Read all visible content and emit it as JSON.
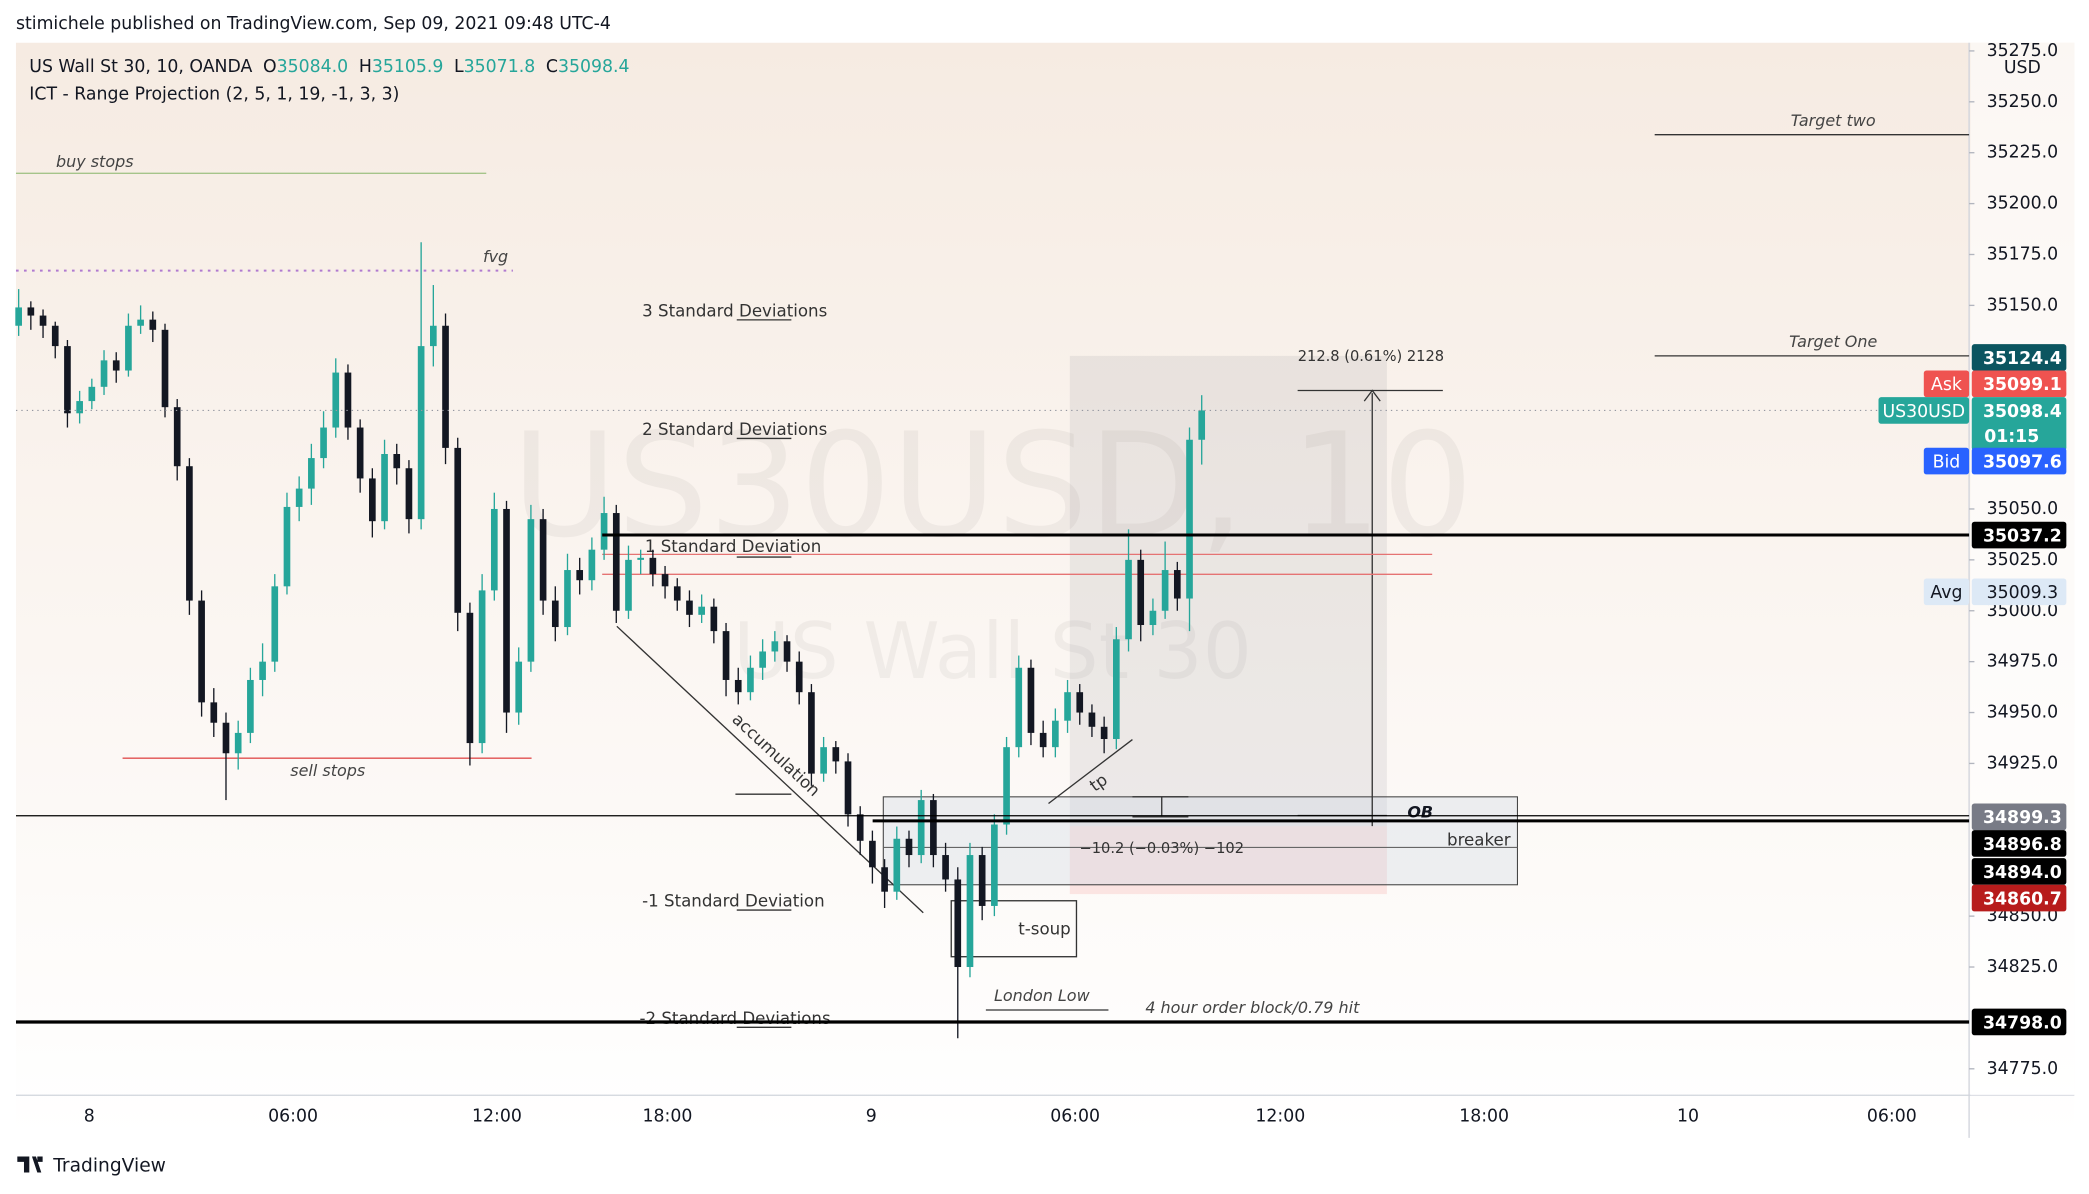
{
  "chart_data": {
    "type": "candlestick",
    "publisher": "stimichele published on TradingView.com, Sep 09, 2021 09:48 UTC-4",
    "symbol": "US Wall St 30, 10, OANDA",
    "ohlc_legend": [
      {
        "key": "O",
        "value": "35084.0"
      },
      {
        "key": "H",
        "value": "35105.9"
      },
      {
        "key": "L",
        "value": "35071.8"
      },
      {
        "key": "C",
        "value": "35098.4"
      }
    ],
    "indicator": "ICT - Range Projection (2, 5, 1, 19, -1, 3, 3)",
    "watermark": "US30USD, 10",
    "watermark_sub": "US Wall St 30",
    "currency": "USD",
    "brand": "TradingView",
    "up_color": "#26a69a",
    "down_color": "#131722",
    "ylim": [
      34762,
      35279
    ],
    "yticks": [
      {
        "value": 34775,
        "label": "34775.0"
      },
      {
        "value": 34825,
        "label": "34825.0"
      },
      {
        "value": 34850,
        "label": "34850.0"
      },
      {
        "value": 34925,
        "label": "34925.0"
      },
      {
        "value": 34950,
        "label": "34950.0"
      },
      {
        "value": 34975,
        "label": "34975.0"
      },
      {
        "value": 35000,
        "label": "35000.0"
      },
      {
        "value": 35025,
        "label": "35025.0"
      },
      {
        "value": 35050,
        "label": "35050.0"
      },
      {
        "value": 35150,
        "label": "35150.0"
      },
      {
        "value": 35175,
        "label": "35175.0"
      },
      {
        "value": 35200,
        "label": "35200.0"
      },
      {
        "value": 35225,
        "label": "35225.0"
      },
      {
        "value": 35250,
        "label": "35250.0"
      },
      {
        "value": 35275,
        "label": "35275.0"
      }
    ],
    "x_labels": [
      "8",
      "06:00",
      "12:00",
      "18:00",
      "9",
      "06:00",
      "12:00",
      "18:00",
      "10",
      "06:00"
    ],
    "price_tags": [
      {
        "value": 35124.4,
        "color": "#0b5560"
      },
      {
        "prefix": "Ask",
        "value": 35099.1,
        "color": "#ef5350"
      },
      {
        "prefix": "US30USD",
        "value": 35098.4,
        "sub": "01:15",
        "color": "#26a69a"
      },
      {
        "prefix": "Bid",
        "value": 35097.6,
        "color": "#2962ff"
      },
      {
        "value": 35037.2,
        "color": "#000000"
      },
      {
        "prefix": "Avg",
        "value": 35009.3,
        "color": "#dde9f6"
      },
      {
        "value": 34899.3,
        "color": "#787b86"
      },
      {
        "value": 34896.8,
        "color": "#000000"
      },
      {
        "value": 34894,
        "label": "34894.0",
        "color": "#000000"
      },
      {
        "value": 34860.7,
        "color": "#b71c1c"
      },
      {
        "value": 34798,
        "label": "34798.0",
        "color": "#000000"
      }
    ],
    "annotations": {
      "buy_stops": "buy stops",
      "fvg": "fvg",
      "sell_stops": "sell stops",
      "sd3": "3 Standard Deviations",
      "sd2": "2 Standard Deviations",
      "sd1": "1 Standard Deviation",
      "sdm1": "-1 Standard Deviation",
      "sdm2": "-2 Standard Deviations",
      "accumulation": "accumulation",
      "tp": "tp",
      "ob": "OB",
      "breaker": "breaker",
      "tsoup": "t-soup",
      "london_low": "London Low",
      "order_block": "4 hour order block/0.79 hit",
      "target_two": "Target two",
      "target_one": "Target One",
      "measure_up": "212.8 (0.61%) 2128",
      "measure_down": "−10.2 (−0.03%) −102"
    },
    "ohlc": [
      [
        35140,
        35158,
        35135,
        35149
      ],
      [
        35149,
        35152,
        35138,
        35145
      ],
      [
        35145,
        35148,
        35134,
        35140
      ],
      [
        35140,
        35142,
        35124,
        35130
      ],
      [
        35130,
        35133,
        35090,
        35097
      ],
      [
        35097,
        35108,
        35092,
        35103
      ],
      [
        35103,
        35114,
        35099,
        35110
      ],
      [
        35110,
        35128,
        35106,
        35123
      ],
      [
        35123,
        35127,
        35112,
        35118
      ],
      [
        35118,
        35146,
        35115,
        35140
      ],
      [
        35140,
        35150,
        35136,
        35143
      ],
      [
        35143,
        35147,
        35132,
        35138
      ],
      [
        35138,
        35141,
        35095,
        35100
      ],
      [
        35100,
        35104,
        35064,
        35071
      ],
      [
        35071,
        35075,
        34998,
        35005
      ],
      [
        35005,
        35010,
        34948,
        34955
      ],
      [
        34955,
        34962,
        34938,
        34945
      ],
      [
        34945,
        34950,
        34907,
        34930
      ],
      [
        34930,
        34946,
        34922,
        34940
      ],
      [
        34940,
        34972,
        34935,
        34966
      ],
      [
        34966,
        34984,
        34958,
        34975
      ],
      [
        34975,
        35018,
        34970,
        35012
      ],
      [
        35012,
        35058,
        35008,
        35051
      ],
      [
        35051,
        35066,
        35044,
        35060
      ],
      [
        35060,
        35082,
        35052,
        35075
      ],
      [
        35075,
        35098,
        35070,
        35090
      ],
      [
        35090,
        35124,
        35085,
        35117
      ],
      [
        35117,
        35121,
        35084,
        35090
      ],
      [
        35090,
        35094,
        35058,
        35065
      ],
      [
        35065,
        35070,
        35036,
        35044
      ],
      [
        35044,
        35084,
        35040,
        35077
      ],
      [
        35077,
        35082,
        35062,
        35070
      ],
      [
        35070,
        35074,
        35038,
        35045
      ],
      [
        35045,
        35181,
        35040,
        35130
      ],
      [
        35130,
        35160,
        35120,
        35140
      ],
      [
        35140,
        35146,
        35072,
        35080
      ],
      [
        35080,
        35085,
        34990,
        34999
      ],
      [
        34999,
        35004,
        34924,
        34935
      ],
      [
        34935,
        35018,
        34930,
        35010
      ],
      [
        35010,
        35058,
        35005,
        35050
      ],
      [
        35050,
        35054,
        34940,
        34950
      ],
      [
        34950,
        34982,
        34944,
        34975
      ],
      [
        34975,
        35052,
        34970,
        35045
      ],
      [
        35045,
        35050,
        34998,
        35005
      ],
      [
        35005,
        35012,
        34985,
        34992
      ],
      [
        34992,
        35028,
        34988,
        35020
      ],
      [
        35020,
        35026,
        35008,
        35015
      ],
      [
        35015,
        35036,
        35010,
        35030
      ],
      [
        35030,
        35056,
        35025,
        35048
      ],
      [
        35048,
        35052,
        34994,
        35000
      ],
      [
        35000,
        35032,
        34996,
        35025
      ],
      [
        35025,
        35030,
        35018,
        35026
      ],
      [
        35026,
        35030,
        35012,
        35018
      ],
      [
        35018,
        35022,
        35006,
        35012
      ],
      [
        35012,
        35016,
        35000,
        35005
      ],
      [
        35005,
        35010,
        34992,
        34998
      ],
      [
        34998,
        35008,
        34994,
        35002
      ],
      [
        35002,
        35006,
        34984,
        34990
      ],
      [
        34990,
        34994,
        34958,
        34966
      ],
      [
        34966,
        34972,
        34954,
        34960
      ],
      [
        34960,
        34978,
        34956,
        34972
      ],
      [
        34972,
        34986,
        34966,
        34980
      ],
      [
        34980,
        34990,
        34975,
        34985
      ],
      [
        34985,
        34988,
        34970,
        34975
      ],
      [
        34975,
        34980,
        34954,
        34960
      ],
      [
        34960,
        34964,
        34914,
        34920
      ],
      [
        34920,
        34938,
        34916,
        34933
      ],
      [
        34933,
        34936,
        34920,
        34926
      ],
      [
        34926,
        34930,
        34894,
        34900
      ],
      [
        34900,
        34904,
        34880,
        34887
      ],
      [
        34887,
        34892,
        34866,
        34874
      ],
      [
        34874,
        34878,
        34854,
        34862
      ],
      [
        34862,
        34894,
        34858,
        34888
      ],
      [
        34888,
        34892,
        34874,
        34880
      ],
      [
        34880,
        34912,
        34876,
        34907
      ],
      [
        34907,
        34910,
        34874,
        34880
      ],
      [
        34880,
        34886,
        34862,
        34868
      ],
      [
        34868,
        34874,
        34790,
        34825
      ],
      [
        34825,
        34886,
        34820,
        34880
      ],
      [
        34880,
        34884,
        34848,
        34855
      ],
      [
        34855,
        34900,
        34850,
        34895
      ],
      [
        34895,
        34938,
        34890,
        34933
      ],
      [
        34933,
        34978,
        34928,
        34972
      ],
      [
        34972,
        34976,
        34934,
        34940
      ],
      [
        34940,
        34946,
        34928,
        34933
      ],
      [
        34933,
        34952,
        34928,
        34946
      ],
      [
        34946,
        34966,
        34940,
        34960
      ],
      [
        34960,
        34964,
        34944,
        34950
      ],
      [
        34950,
        34954,
        34938,
        34943
      ],
      [
        34943,
        34948,
        34930,
        34937
      ],
      [
        34937,
        34992,
        34932,
        34986
      ],
      [
        34986,
        35040,
        34980,
        35025
      ],
      [
        35025,
        35030,
        34985,
        34993
      ],
      [
        34993,
        35006,
        34988,
        35000
      ],
      [
        35000,
        35034,
        34996,
        35020
      ],
      [
        35020,
        35024,
        35000,
        35006
      ],
      [
        35006,
        35090,
        34990,
        35084
      ],
      [
        35084,
        35105.9,
        35071.8,
        35098.4
      ]
    ]
  }
}
